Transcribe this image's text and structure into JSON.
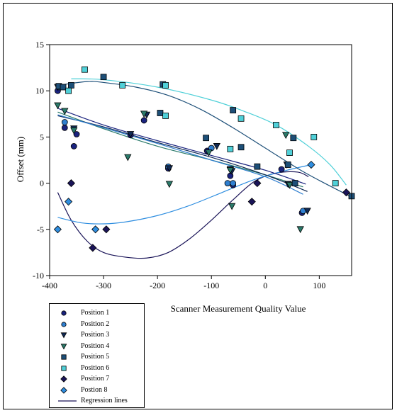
{
  "chart_data": {
    "type": "scatter",
    "title": "",
    "xlabel": "Scanner Measurement Quality Value",
    "ylabel": "Offset (mm)",
    "xlim": [
      -400,
      160
    ],
    "ylim": [
      -10,
      15
    ],
    "x_ticks": [
      "-400",
      "-300",
      "-200",
      "-100",
      "0",
      "100"
    ],
    "y_ticks": [
      "-10",
      "-5",
      "0",
      "5",
      "10",
      "15"
    ],
    "grid": false,
    "legend_position": "bottom-left",
    "series": [
      {
        "name": "Position 1",
        "marker": "circle",
        "fill": "#1a237e",
        "points": [
          [
            -385,
            10
          ],
          [
            -372,
            6
          ],
          [
            -350,
            5.3
          ],
          [
            -355,
            4
          ],
          [
            -250,
            5.2
          ],
          [
            -225,
            6.8
          ],
          [
            -180,
            1.6
          ],
          [
            -108,
            3.5
          ],
          [
            -65,
            0.8
          ],
          [
            -60,
            -0.2
          ],
          [
            30,
            1.5
          ],
          [
            68,
            -3.2
          ]
        ]
      },
      {
        "name": "Position 2",
        "marker": "circle",
        "fill": "#2f7fd0",
        "points": [
          [
            -383,
            10.4
          ],
          [
            -372,
            6.6
          ],
          [
            -180,
            1.8
          ],
          [
            -100,
            3.8
          ],
          [
            -70,
            0
          ],
          [
            -60,
            0
          ],
          [
            70,
            -3
          ]
        ]
      },
      {
        "name": "Position 3",
        "marker": "triangle-down",
        "fill": "#102a55",
        "points": [
          [
            -385,
            10.4
          ],
          [
            -355,
            5.9
          ],
          [
            -250,
            5.3
          ],
          [
            -220,
            7.4
          ],
          [
            -178,
            1.6
          ],
          [
            -90,
            4
          ],
          [
            -65,
            1.5
          ],
          [
            -62,
            1.3
          ],
          [
            40,
            2
          ],
          [
            42,
            -0.1
          ],
          [
            78,
            -3
          ]
        ]
      },
      {
        "name": "Position 4",
        "marker": "triangle-down",
        "fill": "#2a7a6a",
        "points": [
          [
            -385,
            8.4
          ],
          [
            -372,
            7.8
          ],
          [
            -355,
            5.7
          ],
          [
            -255,
            2.8
          ],
          [
            -225,
            7.5
          ],
          [
            -178,
            -0.1
          ],
          [
            -105,
            3.3
          ],
          [
            -65,
            1.4
          ],
          [
            -62,
            -2.5
          ],
          [
            38,
            5.2
          ],
          [
            45,
            -0.2
          ],
          [
            65,
            -5
          ]
        ]
      },
      {
        "name": "Position 5",
        "marker": "square",
        "fill": "#1d4f78",
        "points": [
          [
            -383,
            10.5
          ],
          [
            -375,
            10.4
          ],
          [
            -360,
            10.6
          ],
          [
            -300,
            11.5
          ],
          [
            -195,
            7.6
          ],
          [
            -190,
            10.7
          ],
          [
            -110,
            4.9
          ],
          [
            -60,
            7.9
          ],
          [
            -45,
            3.9
          ],
          [
            -15,
            1.8
          ],
          [
            42,
            2.0
          ],
          [
            52,
            4.9
          ],
          [
            55,
            0
          ],
          [
            160,
            -1.4
          ]
        ]
      },
      {
        "name": "Position 6",
        "marker": "square",
        "fill": "#4fd0d8",
        "points": [
          [
            -365,
            10
          ],
          [
            -335,
            12.3
          ],
          [
            -265,
            10.6
          ],
          [
            -185,
            10.6
          ],
          [
            -185,
            7.3
          ],
          [
            -65,
            3.7
          ],
          [
            -45,
            7
          ],
          [
            20,
            6.3
          ],
          [
            45,
            3.3
          ],
          [
            90,
            5
          ],
          [
            130,
            0
          ]
        ]
      },
      {
        "name": "Position 7",
        "marker": "diamond",
        "fill": "#1a1458",
        "points": [
          [
            -360,
            0
          ],
          [
            -320,
            -7
          ],
          [
            -295,
            -5
          ],
          [
            -25,
            -2
          ],
          [
            -15,
            0
          ],
          [
            150,
            -1
          ]
        ]
      },
      {
        "name": "Postion 8",
        "marker": "diamond",
        "fill": "#2f8ee0",
        "points": [
          [
            -385,
            -5
          ],
          [
            -365,
            -2
          ],
          [
            -315,
            -5
          ],
          [
            85,
            2
          ]
        ]
      }
    ],
    "regression_lines": {
      "name": "Regression lines",
      "curves": [
        {
          "color": "#1a1458",
          "points": [
            [
              -385,
              -1
            ],
            [
              -360,
              -4
            ],
            [
              -330,
              -6.3
            ],
            [
              -300,
              -7.5
            ],
            [
              -260,
              -8
            ],
            [
              -220,
              -8.1
            ],
            [
              -180,
              -7.5
            ],
            [
              -140,
              -6
            ],
            [
              -100,
              -4
            ],
            [
              -60,
              -1.8
            ],
            [
              -20,
              0.2
            ],
            [
              20,
              1.1
            ],
            [
              60,
              1.2
            ],
            [
              80,
              0.7
            ]
          ]
        },
        {
          "color": "#2f8ee0",
          "points": [
            [
              -385,
              -3.7
            ],
            [
              -340,
              -4.3
            ],
            [
              -300,
              -4.4
            ],
            [
              -260,
              -4.2
            ],
            [
              -200,
              -3.5
            ],
            [
              -140,
              -2.4
            ],
            [
              -80,
              -1
            ],
            [
              -20,
              0.4
            ],
            [
              40,
              1.4
            ],
            [
              85,
              2
            ]
          ]
        },
        {
          "color": "#1d4f78",
          "points": [
            [
              -385,
              10.6
            ],
            [
              -330,
              11
            ],
            [
              -300,
              10.9
            ],
            [
              -240,
              10.4
            ],
            [
              -180,
              9.5
            ],
            [
              -120,
              8
            ],
            [
              -60,
              6
            ],
            [
              0,
              3.8
            ],
            [
              60,
              1.6
            ],
            [
              100,
              0.3
            ],
            [
              160,
              -1.5
            ]
          ]
        },
        {
          "color": "#4fd0d8",
          "points": [
            [
              -360,
              11.3
            ],
            [
              -300,
              11.2
            ],
            [
              -200,
              10.4
            ],
            [
              -100,
              9
            ],
            [
              -40,
              7.8
            ],
            [
              20,
              6.3
            ],
            [
              80,
              4
            ],
            [
              120,
              2
            ],
            [
              150,
              -0.2
            ]
          ]
        },
        {
          "color": "#2a7a6a",
          "points": [
            [
              -385,
              7.7
            ],
            [
              -300,
              5.9
            ],
            [
              -200,
              4
            ],
            [
              -100,
              2.5
            ],
            [
              0,
              0.9
            ],
            [
              70,
              -0.4
            ]
          ]
        },
        {
          "color": "#1a237e",
          "points": [
            [
              -385,
              8.1
            ],
            [
              -300,
              6.3
            ],
            [
              -200,
              4.6
            ],
            [
              -100,
              3
            ],
            [
              0,
              1.4
            ],
            [
              75,
              -0.1
            ]
          ]
        },
        {
          "color": "#102a55",
          "points": [
            [
              -385,
              7.3
            ],
            [
              -300,
              6.1
            ],
            [
              -200,
              4.4
            ],
            [
              -100,
              2.8
            ],
            [
              0,
              0.9
            ],
            [
              78,
              -0.9
            ]
          ]
        },
        {
          "color": "#2f7fd0",
          "points": [
            [
              -385,
              7.4
            ],
            [
              -300,
              6
            ],
            [
              -200,
              4.3
            ],
            [
              -100,
              2.5
            ],
            [
              0,
              0.7
            ],
            [
              70,
              -1.2
            ]
          ]
        }
      ]
    }
  }
}
